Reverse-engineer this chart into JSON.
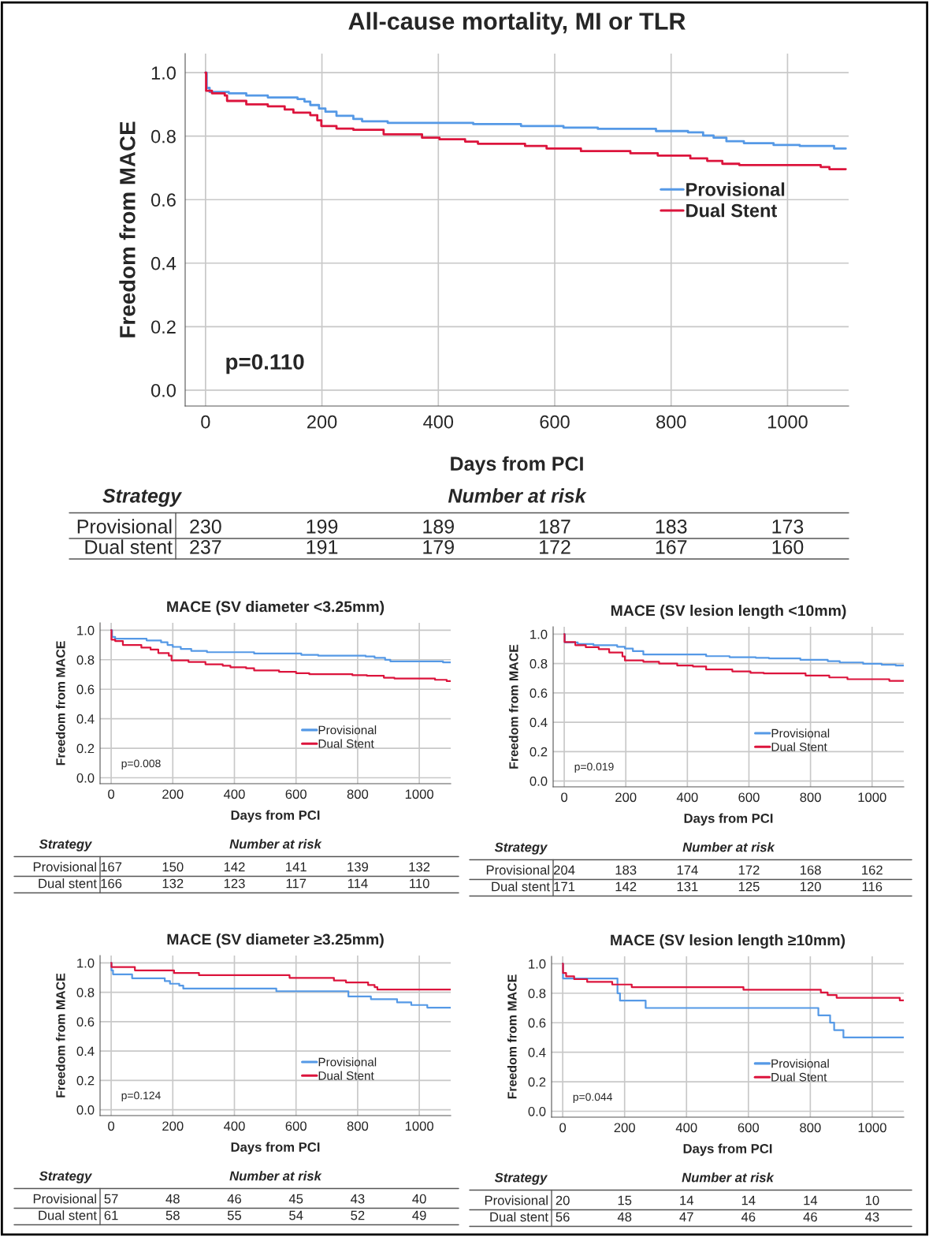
{
  "chart_data": [
    {
      "type": "step",
      "title": "All-cause mortality, MI or TLR",
      "xlabel": "Days from PCI",
      "ylabel": "Freedom from MACE",
      "xlim": [
        -35,
        1105
      ],
      "ylim": [
        -0.05,
        1.06
      ],
      "xticks": [
        0,
        200,
        400,
        600,
        800,
        1000
      ],
      "yticks": [
        {
          "value": 0,
          "label": "0.0"
        },
        {
          "value": 0.2,
          "label": "0.2"
        },
        {
          "value": 0.4,
          "label": "0.4"
        },
        {
          "value": 0.6,
          "label": "0.6"
        },
        {
          "value": 0.8,
          "label": "0.8"
        },
        {
          "value": 1.0,
          "label": "1.0"
        }
      ],
      "grid": true,
      "legend": "center right",
      "series": [
        {
          "name": "Provisional",
          "color": "#5599e6",
          "x": [
            0,
            2,
            7,
            40,
            70,
            107,
            158,
            170,
            180,
            195,
            206,
            225,
            254,
            269,
            313,
            460,
            542,
            615,
            674,
            774,
            829,
            855,
            873,
            895,
            925,
            976,
            1021,
            1080,
            1100
          ],
          "values": [
            1.0,
            0.952,
            0.939,
            0.935,
            0.928,
            0.922,
            0.917,
            0.909,
            0.898,
            0.887,
            0.877,
            0.864,
            0.854,
            0.847,
            0.842,
            0.838,
            0.832,
            0.827,
            0.823,
            0.816,
            0.812,
            0.802,
            0.795,
            0.784,
            0.778,
            0.772,
            0.769,
            0.761,
            0.761
          ]
        },
        {
          "name": "Dual Stent",
          "color": "#dc143c",
          "x": [
            0,
            1,
            11,
            33,
            37,
            70,
            107,
            136,
            151,
            180,
            192,
            199,
            225,
            254,
            306,
            372,
            402,
            446,
            468,
            549,
            586,
            645,
            730,
            777,
            833,
            862,
            888,
            917,
            1057,
            1072,
            1100
          ],
          "values": [
            1.0,
            0.943,
            0.935,
            0.928,
            0.911,
            0.9,
            0.894,
            0.884,
            0.874,
            0.866,
            0.85,
            0.832,
            0.824,
            0.82,
            0.806,
            0.795,
            0.79,
            0.783,
            0.776,
            0.769,
            0.761,
            0.753,
            0.746,
            0.739,
            0.73,
            0.722,
            0.713,
            0.709,
            0.703,
            0.696,
            0.696
          ]
        }
      ],
      "annotations": [
        "p=0.110",
        "Strategy",
        "Number at risk",
        "Provisional",
        "230",
        "199",
        "189",
        "187",
        "183",
        "173",
        "Dual stent",
        "237",
        "191",
        "179",
        "172",
        "167",
        "160"
      ]
    },
    {
      "type": "step",
      "title": "MACE (SV diameter <3.25mm)",
      "xlabel": "Days from PCI",
      "ylabel": "Freedom from MACE",
      "xlim": [
        -36,
        1102
      ],
      "ylim": [
        -0.04,
        1.05
      ],
      "xticks": [
        0,
        200,
        400,
        600,
        800,
        1000
      ],
      "yticks": [
        {
          "value": 0,
          "label": "0.0"
        },
        {
          "value": 0.2,
          "label": "0.2"
        },
        {
          "value": 0.4,
          "label": "0.4"
        },
        {
          "value": 0.6,
          "label": "0.6"
        },
        {
          "value": 0.8,
          "label": "0.8"
        },
        {
          "value": 1.0,
          "label": "1.0"
        }
      ],
      "grid": true,
      "legend": "lower right",
      "series": [
        {
          "name": "Provisional",
          "color": "#5599e6",
          "x": [
            0,
            3,
            13,
            115,
            162,
            183,
            200,
            226,
            260,
            311,
            464,
            617,
            672,
            826,
            855,
            889,
            906,
            1077,
            1102
          ],
          "values": [
            1.0,
            0.955,
            0.942,
            0.931,
            0.918,
            0.9,
            0.887,
            0.873,
            0.86,
            0.851,
            0.842,
            0.833,
            0.827,
            0.822,
            0.813,
            0.8,
            0.789,
            0.782,
            0.782
          ]
        },
        {
          "name": "Dual Stent",
          "color": "#dc143c",
          "x": [
            0,
            1,
            13,
            38,
            98,
            128,
            153,
            187,
            196,
            251,
            306,
            362,
            387,
            438,
            464,
            545,
            600,
            643,
            783,
            830,
            885,
            919,
            1051,
            1089,
            1102
          ],
          "values": [
            1.0,
            0.936,
            0.927,
            0.9,
            0.882,
            0.869,
            0.845,
            0.827,
            0.795,
            0.785,
            0.769,
            0.76,
            0.749,
            0.742,
            0.727,
            0.718,
            0.709,
            0.702,
            0.695,
            0.691,
            0.678,
            0.673,
            0.664,
            0.655,
            0.655
          ]
        }
      ],
      "annotations": [
        "p=0.008",
        "Strategy",
        "Number at risk",
        "Provisional",
        "167",
        "150",
        "142",
        "141",
        "139",
        "132",
        "Dual stent",
        "166",
        "132",
        "123",
        "117",
        "114",
        "110"
      ]
    },
    {
      "type": "step",
      "title": "MACE (SV lesion length <10mm)",
      "xlabel": "Days from PCI",
      "ylabel": "Freedom from MACE",
      "xlim": [
        -36,
        1103
      ],
      "ylim": [
        -0.04,
        1.05
      ],
      "xticks": [
        0,
        200,
        400,
        600,
        800,
        1000
      ],
      "yticks": [
        {
          "value": 0,
          "label": "0.0"
        },
        {
          "value": 0.2,
          "label": "0.2"
        },
        {
          "value": 0.4,
          "label": "0.4"
        },
        {
          "value": 0.6,
          "label": "0.6"
        },
        {
          "value": 0.8,
          "label": "0.8"
        },
        {
          "value": 1.0,
          "label": "1.0"
        }
      ],
      "grid": true,
      "legend": "lower right",
      "series": [
        {
          "name": "Provisional",
          "color": "#5599e6",
          "x": [
            0,
            2,
            44,
            95,
            172,
            197,
            223,
            257,
            461,
            537,
            622,
            665,
            767,
            856,
            895,
            971,
            1031,
            1077,
            1103
          ],
          "values": [
            1.0,
            0.943,
            0.932,
            0.925,
            0.914,
            0.902,
            0.884,
            0.861,
            0.85,
            0.843,
            0.839,
            0.834,
            0.825,
            0.816,
            0.807,
            0.798,
            0.791,
            0.786,
            0.786
          ]
        },
        {
          "name": "Dual Stent",
          "color": "#dc143c",
          "x": [
            0,
            1,
            36,
            70,
            112,
            146,
            189,
            197,
            257,
            308,
            367,
            418,
            461,
            546,
            605,
            648,
            784,
            861,
            920,
            1056,
            1103
          ],
          "values": [
            1.0,
            0.946,
            0.925,
            0.911,
            0.898,
            0.875,
            0.848,
            0.821,
            0.812,
            0.8,
            0.786,
            0.78,
            0.759,
            0.746,
            0.736,
            0.732,
            0.718,
            0.705,
            0.693,
            0.682,
            0.682
          ]
        }
      ],
      "annotations": [
        "p=0.019",
        "Strategy",
        "Number at risk",
        "Provisional",
        "204",
        "183",
        "174",
        "172",
        "168",
        "162",
        "Dual stent",
        "171",
        "142",
        "131",
        "125",
        "120",
        "116"
      ]
    },
    {
      "type": "step",
      "title": "MACE (SV diameter ≥3.25mm)",
      "xlabel": "Days from PCI",
      "ylabel": "Freedom from MACE",
      "xlim": [
        -36,
        1102
      ],
      "ylim": [
        -0.04,
        1.05
      ],
      "xticks": [
        0,
        200,
        400,
        600,
        800,
        1000
      ],
      "yticks": [
        {
          "value": 0,
          "label": "0.0"
        },
        {
          "value": 0.2,
          "label": "0.2"
        },
        {
          "value": 0.4,
          "label": "0.4"
        },
        {
          "value": 0.6,
          "label": "0.6"
        },
        {
          "value": 0.8,
          "label": "0.8"
        },
        {
          "value": 1.0,
          "label": "1.0"
        }
      ],
      "grid": true,
      "legend": "lower right",
      "series": [
        {
          "name": "Provisional",
          "color": "#5599e6",
          "x": [
            0,
            1,
            6,
            68,
            174,
            191,
            221,
            234,
            536,
            770,
            843,
            928,
            974,
            1026,
            1102
          ],
          "values": [
            1.0,
            0.949,
            0.922,
            0.895,
            0.876,
            0.858,
            0.845,
            0.825,
            0.807,
            0.771,
            0.753,
            0.731,
            0.713,
            0.695,
            0.695
          ]
        },
        {
          "name": "Dual Stent",
          "color": "#dc143c",
          "x": [
            0,
            1,
            77,
            204,
            285,
            579,
            723,
            762,
            834,
            855,
            864,
            1102
          ],
          "values": [
            1.0,
            0.971,
            0.949,
            0.931,
            0.916,
            0.898,
            0.88,
            0.867,
            0.849,
            0.835,
            0.818,
            0.818
          ]
        }
      ],
      "annotations": [
        "p=0.124",
        "Strategy",
        "Number at risk",
        "Provisional",
        "57",
        "48",
        "46",
        "45",
        "43",
        "40",
        "Dual stent",
        "61",
        "58",
        "55",
        "54",
        "52",
        "49"
      ]
    },
    {
      "type": "step",
      "title": "MACE (SV lesion length ≥10mm)",
      "xlabel": "Days from PCI",
      "ylabel": "Freedom from MACE",
      "xlim": [
        -36,
        1102
      ],
      "ylim": [
        -0.04,
        1.05
      ],
      "xticks": [
        0,
        200,
        400,
        600,
        800,
        1000
      ],
      "yticks": [
        {
          "value": 0,
          "label": "0.0"
        },
        {
          "value": 0.2,
          "label": "0.2"
        },
        {
          "value": 0.4,
          "label": "0.4"
        },
        {
          "value": 0.6,
          "label": "0.6"
        },
        {
          "value": 0.8,
          "label": "0.8"
        },
        {
          "value": 1.0,
          "label": "1.0"
        }
      ],
      "grid": true,
      "legend": "lower right",
      "series": [
        {
          "name": "Provisional",
          "color": "#5599e6",
          "x": [
            0,
            1,
            177,
            185,
            268,
            826,
            864,
            877,
            907,
            1102
          ],
          "values": [
            1.0,
            0.9,
            0.8,
            0.75,
            0.7,
            0.65,
            0.6,
            0.55,
            0.5,
            0.5
          ]
        },
        {
          "name": "Dual Stent",
          "color": "#dc143c",
          "x": [
            0,
            1,
            11,
            37,
            79,
            160,
            223,
            584,
            834,
            856,
            885,
            1089,
            1102
          ],
          "values": [
            1.0,
            0.937,
            0.914,
            0.895,
            0.877,
            0.859,
            0.841,
            0.823,
            0.805,
            0.787,
            0.769,
            0.751,
            0.751
          ]
        }
      ],
      "annotations": [
        "p=0.044",
        "Strategy",
        "Number at risk",
        "Provisional",
        "20",
        "15",
        "14",
        "14",
        "14",
        "10",
        "Dual stent",
        "56",
        "48",
        "47",
        "46",
        "46",
        "43"
      ]
    }
  ]
}
